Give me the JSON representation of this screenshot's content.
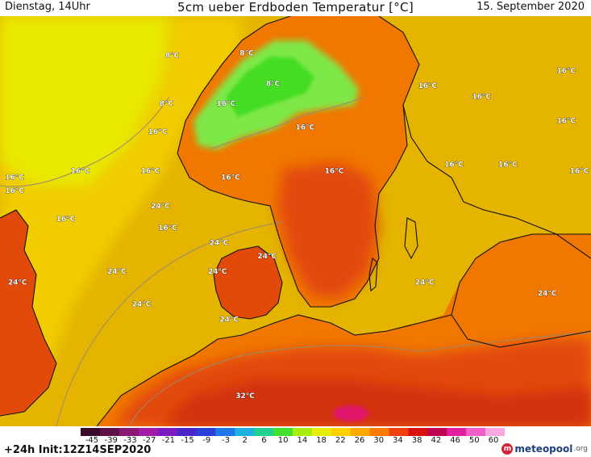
{
  "header": {
    "left": "Dienstag, 14Uhr",
    "title": "5cm ueber Erdboden Temperatur [°C]",
    "right": "15. September 2020"
  },
  "footer": {
    "init": "+24h Init:12Z14SEP2020",
    "brand": "meteopool",
    "brand_tld": ".org"
  },
  "legend": {
    "ticks": [
      "-45",
      "-39",
      "-33",
      "-27",
      "-21",
      "-15",
      "-9",
      "-3",
      "2",
      "6",
      "10",
      "14",
      "18",
      "22",
      "26",
      "30",
      "34",
      "38",
      "42",
      "46",
      "50",
      "60"
    ],
    "colors": [
      "#3a0a2a",
      "#5e1048",
      "#8a1a74",
      "#a21ca8",
      "#7a1cc0",
      "#4a26c8",
      "#2a40d8",
      "#1e78e8",
      "#22b0e0",
      "#22d090",
      "#44e030",
      "#a6ee10",
      "#e6ee10",
      "#ffd000",
      "#ffa800",
      "#ff7a00",
      "#f04010",
      "#d81010",
      "#c00050",
      "#e020a0",
      "#f060c8",
      "#f8a8e0"
    ]
  },
  "map": {
    "colors": {
      "sea": "#e4b400",
      "land_warm": "#f07800",
      "land_hot": "#e24a0a",
      "land_very_hot": "#d2300c",
      "atlantic": "#f0cc00",
      "north_cool": "#e8e800",
      "cold": "#7ee84a",
      "cold_core": "#44dd22",
      "hotspot": "#e0186a",
      "coast": "#111111",
      "contour": "#9a8a70"
    },
    "labels": [
      {
        "text": "16°C",
        "lon": -3.5,
        "lat": 61.3
      },
      {
        "text": "16°C",
        "lon": -3.5,
        "lat": 60.7
      },
      {
        "text": "24°C",
        "lon": -3.3,
        "lat": 56.5
      },
      {
        "text": "8°C",
        "lon": 7.3,
        "lat": 66.9
      },
      {
        "text": "8°C",
        "lon": 12.4,
        "lat": 67.0
      },
      {
        "text": "8°C",
        "lon": 14.2,
        "lat": 65.6
      },
      {
        "text": "8°C",
        "lon": 6.9,
        "lat": 64.7
      },
      {
        "text": "16°C",
        "lon": 11.0,
        "lat": 64.7
      },
      {
        "text": "16°C",
        "lon": 6.3,
        "lat": 63.4
      },
      {
        "text": "16°C",
        "lon": 16.4,
        "lat": 63.6
      },
      {
        "text": "16°C",
        "lon": 24.8,
        "lat": 65.5
      },
      {
        "text": "16°C",
        "lon": 28.5,
        "lat": 65.0
      },
      {
        "text": "16°C",
        "lon": 34.3,
        "lat": 66.2
      },
      {
        "text": "16°C",
        "lon": 34.3,
        "lat": 63.9
      },
      {
        "text": "16°C",
        "lon": 1.0,
        "lat": 61.6
      },
      {
        "text": "16°C",
        "lon": 5.8,
        "lat": 61.6
      },
      {
        "text": "16°C",
        "lon": 11.3,
        "lat": 61.3
      },
      {
        "text": "16°C",
        "lon": 18.4,
        "lat": 61.6
      },
      {
        "text": "16°C",
        "lon": 26.6,
        "lat": 61.9
      },
      {
        "text": "16°C",
        "lon": 30.3,
        "lat": 61.9
      },
      {
        "text": "16°C",
        "lon": 35.2,
        "lat": 61.6
      },
      {
        "text": "16°C",
        "lon": 0.0,
        "lat": 59.4
      },
      {
        "text": "24°C",
        "lon": 6.5,
        "lat": 60.0
      },
      {
        "text": "16°C",
        "lon": 7.0,
        "lat": 59.0
      },
      {
        "text": "24°C",
        "lon": 10.5,
        "lat": 58.3
      },
      {
        "text": "24°C",
        "lon": 13.8,
        "lat": 57.7
      },
      {
        "text": "24°C",
        "lon": 3.5,
        "lat": 57.0
      },
      {
        "text": "24°C",
        "lon": 10.4,
        "lat": 57.0
      },
      {
        "text": "24°C",
        "lon": 24.6,
        "lat": 56.5
      },
      {
        "text": "24°C",
        "lon": 5.2,
        "lat": 55.5
      },
      {
        "text": "24°C",
        "lon": 11.2,
        "lat": 54.8
      },
      {
        "text": "24°C",
        "lon": 33.0,
        "lat": 56.0
      },
      {
        "text": "32°C",
        "lon": 12.3,
        "lat": 51.3
      }
    ]
  }
}
